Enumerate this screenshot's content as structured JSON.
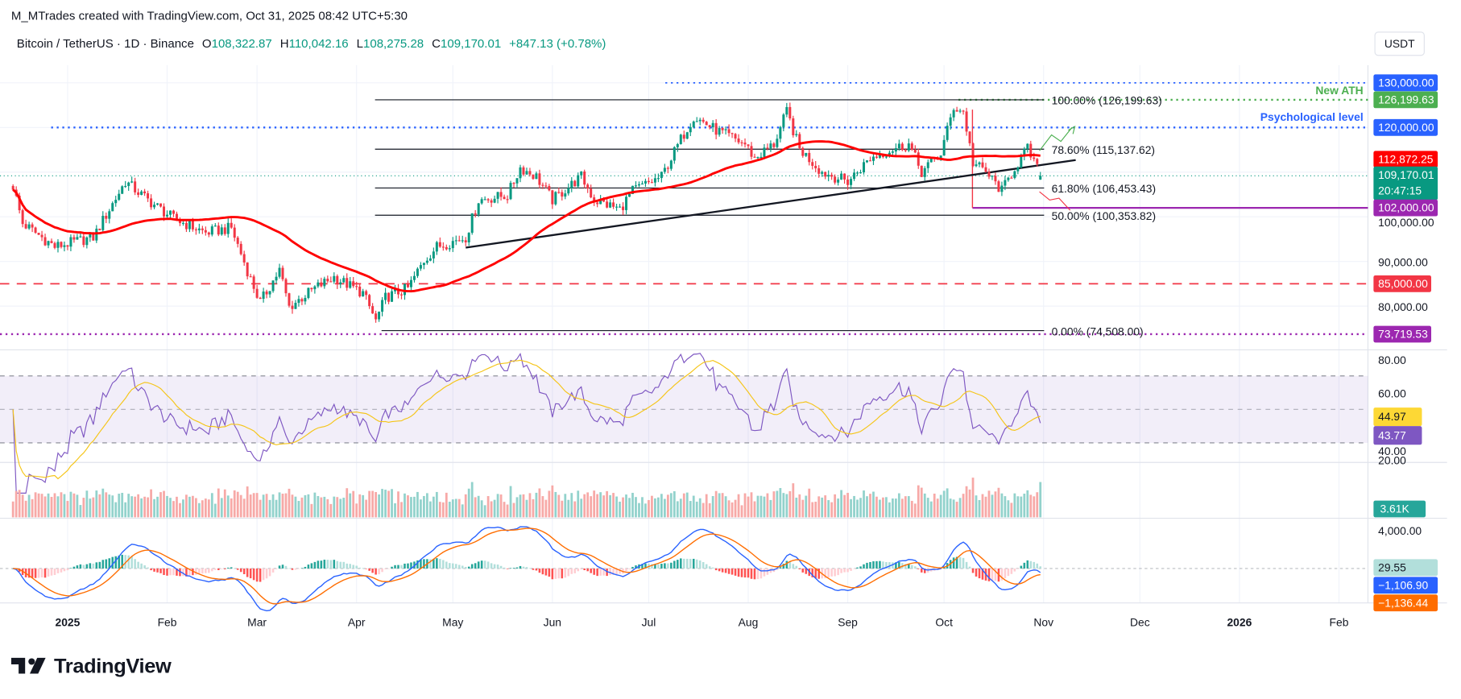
{
  "header": {
    "attribution": "M_MTrades created with TradingView.com, Oct 31, 2025 08:42 UTC+5:30",
    "symbol": "Bitcoin / TetherUS · 1D · Binance",
    "open_label": "O",
    "open": "108,322.87",
    "high_label": "H",
    "high": "110,042.16",
    "low_label": "L",
    "low": "108,275.28",
    "close_label": "C",
    "close": "109,170.01",
    "change": "+847.13 (+0.78%)",
    "currency": "USDT"
  },
  "footer": {
    "brand": "TradingView"
  },
  "colors": {
    "up": "#089981",
    "down": "#f23645",
    "ma": "#ff0000",
    "rsi": "#7e57c2",
    "rsi_ma": "#f5c518",
    "macd": "#2962ff",
    "signal": "#ff6d00"
  },
  "chart_data": {
    "type": "candlestick",
    "symbol": "BTCUSDT",
    "interval": "1D",
    "price_path": [
      [
        "2024-12-15",
        106900
      ],
      [
        "2024-12-18",
        98500
      ],
      [
        "2024-12-28",
        93300
      ],
      [
        "2025-01-09",
        95400
      ],
      [
        "2025-01-19",
        107900
      ],
      [
        "2025-01-26",
        103750
      ],
      [
        "2025-02-03",
        99600
      ],
      [
        "2025-02-13",
        96450
      ],
      [
        "2025-02-21",
        97500
      ],
      [
        "2025-02-27",
        86050
      ],
      [
        "2025-03-02",
        80800
      ],
      [
        "2025-03-08",
        88100
      ],
      [
        "2025-03-11",
        79800
      ],
      [
        "2025-03-19",
        84000
      ],
      [
        "2025-03-25",
        86500
      ],
      [
        "2025-04-03",
        82900
      ],
      [
        "2025-04-07",
        76700
      ],
      [
        "2025-04-10",
        81900
      ],
      [
        "2025-04-17",
        84000
      ],
      [
        "2025-04-22",
        90200
      ],
      [
        "2025-04-26",
        93300
      ],
      [
        "2025-05-05",
        95400
      ],
      [
        "2025-05-09",
        103750
      ],
      [
        "2025-05-18",
        104800
      ],
      [
        "2025-05-22",
        111000
      ],
      [
        "2025-05-27",
        109000
      ],
      [
        "2025-06-01",
        103750
      ],
      [
        "2025-06-10",
        109000
      ],
      [
        "2025-06-14",
        103750
      ],
      [
        "2025-06-22",
        101700
      ],
      [
        "2025-06-26",
        105800
      ],
      [
        "2025-07-05",
        109000
      ],
      [
        "2025-07-11",
        117300
      ],
      [
        "2025-07-15",
        122500
      ],
      [
        "2025-07-22",
        119400
      ],
      [
        "2025-07-31",
        116250
      ],
      [
        "2025-08-03",
        113100
      ],
      [
        "2025-08-09",
        116250
      ],
      [
        "2025-08-13",
        123500
      ],
      [
        "2025-08-17",
        115200
      ],
      [
        "2025-08-24",
        110000
      ],
      [
        "2025-09-01",
        107900
      ],
      [
        "2025-09-08",
        113100
      ],
      [
        "2025-09-15",
        115200
      ],
      [
        "2025-09-20",
        116250
      ],
      [
        "2025-09-24",
        110000
      ],
      [
        "2025-09-30",
        114200
      ],
      [
        "2025-10-04",
        124600
      ],
      [
        "2025-10-07",
        123500
      ],
      [
        "2025-10-10",
        112100
      ],
      [
        "2025-10-14",
        110000
      ],
      [
        "2025-10-19",
        105800
      ],
      [
        "2025-10-23",
        111000
      ],
      [
        "2025-10-27",
        115200
      ],
      [
        "2025-10-31",
        109170.01
      ]
    ],
    "last_candle": {
      "date": "2025-10-31",
      "open": 108322.87,
      "high": 110042.16,
      "low": 108275.28,
      "close": 109170.01
    },
    "moving_average": {
      "period": 50,
      "last": "112,872.25"
    },
    "price_axis": {
      "ticks": [
        "100,000.00",
        "90,000.00",
        "80,000.00"
      ],
      "tick_values": [
        100000,
        90000,
        80000
      ]
    },
    "time_axis": [
      {
        "date": "2025-01-01",
        "label": "2025"
      },
      {
        "date": "2025-02-01",
        "label": "Feb"
      },
      {
        "date": "2025-03-01",
        "label": "Mar"
      },
      {
        "date": "2025-04-01",
        "label": "Apr"
      },
      {
        "date": "2025-05-01",
        "label": "May"
      },
      {
        "date": "2025-06-01",
        "label": "Jun"
      },
      {
        "date": "2025-07-01",
        "label": "Jul"
      },
      {
        "date": "2025-08-01",
        "label": "Aug"
      },
      {
        "date": "2025-09-01",
        "label": "Sep"
      },
      {
        "date": "2025-10-01",
        "label": "Oct"
      },
      {
        "date": "2025-11-01",
        "label": "Nov"
      },
      {
        "date": "2025-12-01",
        "label": "Dec"
      },
      {
        "date": "2026-01-01",
        "label": "2026"
      },
      {
        "date": "2026-02-01",
        "label": "Feb"
      }
    ],
    "fibonacci": [
      {
        "level": "100.00%",
        "price": 126199.63,
        "label": "100.00% (126,199.63)"
      },
      {
        "level": "78.60%",
        "price": 115137.62,
        "label": "78.60% (115,137.62)"
      },
      {
        "level": "61.80%",
        "price": 106453.43,
        "label": "61.80% (106,453.43)"
      },
      {
        "level": "50.00%",
        "price": 100353.82,
        "label": "50.00% (100,353.82)"
      },
      {
        "level": "0.00%",
        "price": 74508.0,
        "label": "0.00% (74,508.00)"
      }
    ],
    "annotations": [
      {
        "text": "New ATH",
        "price": 126199.63,
        "color": "#4caf50"
      },
      {
        "text": "Psychological level",
        "price": 120000,
        "color": "#2962ff"
      }
    ],
    "horizontal_levels": [
      {
        "price": 130000,
        "style": "dotted",
        "color": "#2962ff"
      },
      {
        "price": 126199.63,
        "style": "dotted",
        "color": "#4caf50"
      },
      {
        "price": 120000,
        "style": "dotted",
        "color": "#2962ff"
      },
      {
        "price": 102000,
        "style": "solid",
        "color": "#9c27b0"
      },
      {
        "price": 85000,
        "style": "dashed",
        "color": "#f23645"
      },
      {
        "price": 73719.53,
        "style": "dotted",
        "color": "#9c27b0"
      }
    ],
    "trendline": {
      "from": [
        "2025-05-05",
        93100
      ],
      "to": [
        "2025-11-11",
        112700
      ]
    },
    "price_labels": [
      {
        "text": "130,000.00",
        "price": 130000,
        "bg": "#2962ff",
        "fg": "#ffffff"
      },
      {
        "text": "126,199.63",
        "price": 126199.63,
        "bg": "#4caf50",
        "fg": "#ffffff"
      },
      {
        "text": "120,000.00",
        "price": 120000,
        "bg": "#2962ff",
        "fg": "#ffffff"
      },
      {
        "text": "112,872.25",
        "price": 112872.25,
        "bg": "#ff0000",
        "fg": "#ffffff"
      },
      {
        "text": "109,170.01",
        "price": 109170.01,
        "bg": "#089981",
        "fg": "#ffffff",
        "sub": "20:47:15"
      },
      {
        "text": "102,000.00",
        "price": 102000,
        "bg": "#9c27b0",
        "fg": "#ffffff"
      },
      {
        "text": "85,000.00",
        "price": 85000,
        "bg": "#f23645",
        "fg": "#ffffff"
      },
      {
        "text": "73,719.53",
        "price": 73719.53,
        "bg": "#9c27b0",
        "fg": "#ffffff"
      }
    ],
    "rsi": {
      "period": 14,
      "value": "43.77",
      "ma_value": "44.97",
      "ticks": [
        "80.00",
        "60.00",
        "40.00",
        "20.00"
      ],
      "tick_values": [
        80,
        60,
        40,
        20
      ],
      "bands": [
        30,
        50,
        70
      ]
    },
    "volume": {
      "last": "3.61K"
    },
    "macd": {
      "tick": "4,000.00",
      "tick_value": 4000,
      "histogram": "29.55",
      "macd": "−1,106.90",
      "signal": "−1,136.44"
    }
  }
}
